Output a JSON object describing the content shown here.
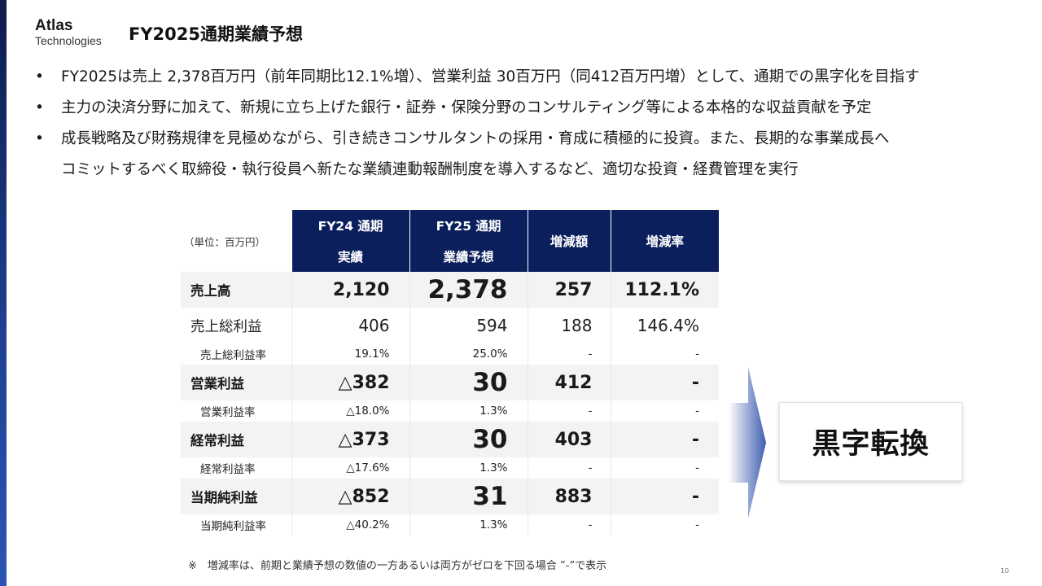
{
  "logo": {
    "name": "Atlas",
    "sub": "Technologies"
  },
  "title": "FY2025通期業績予想",
  "bullets": [
    "FY2025は売上 2,378百万円（前年同期比12.1%増）、営業利益 30百万円（同412百万円増）として、通期での黒字化を目指す",
    "主力の決済分野に加えて、新規に立ち上げた銀行・証券・保険分野のコンサルティング等による本格的な収益貢献を予定",
    "成長戦略及び財務規律を見極めながら、引き続きコンサルタントの採用・育成に積極的に投資。また、長期的な事業成長へ"
  ],
  "bullet_continuation": "コミットするべく取締役・執行役員へ新たな業績連動報酬制度を導入するなど、適切な投資・経費管理を実行",
  "table": {
    "unit": "（単位：百万円）",
    "headers": {
      "fy24_line1": "FY24 通期",
      "fy24_line2": "実績",
      "fy25_line1": "FY25 通期",
      "fy25_line2": "業績予想",
      "diff": "増減額",
      "rate": "増減率"
    },
    "rows": [
      {
        "label": "売上高",
        "fy24": "2,120",
        "fy25": "2,378",
        "diff": "257",
        "rate": "112.1%"
      },
      {
        "label": "売上総利益",
        "fy24": "406",
        "fy25": "594",
        "diff": "188",
        "rate": "146.4%"
      },
      {
        "label": "売上総利益率",
        "fy24": "19.1%",
        "fy25": "25.0%",
        "diff": "-",
        "rate": "-"
      },
      {
        "label": "営業利益",
        "fy24": "△382",
        "fy25": "30",
        "diff": "412",
        "rate": "-"
      },
      {
        "label": "営業利益率",
        "fy24": "△18.0%",
        "fy25": "1.3%",
        "diff": "-",
        "rate": "-"
      },
      {
        "label": "経常利益",
        "fy24": "△373",
        "fy25": "30",
        "diff": "403",
        "rate": "-"
      },
      {
        "label": "経常利益率",
        "fy24": "△17.6%",
        "fy25": "1.3%",
        "diff": "-",
        "rate": "-"
      },
      {
        "label": "当期純利益",
        "fy24": "△852",
        "fy25": "31",
        "diff": "883",
        "rate": "-"
      },
      {
        "label": "当期純利益率",
        "fy24": "△40.2%",
        "fy25": "1.3%",
        "diff": "-",
        "rate": "-"
      }
    ]
  },
  "callout": "黒字転換",
  "footnote": "※　増減率は、前期と業績予想の数値の一方あるいは両方がゼロを下回る場合 ”-”で表示",
  "page_number": "10",
  "colors": {
    "header_bg": "#0b1f5c",
    "accent_blue": "#2b55b5",
    "row_shade": "#f3f3f3"
  }
}
